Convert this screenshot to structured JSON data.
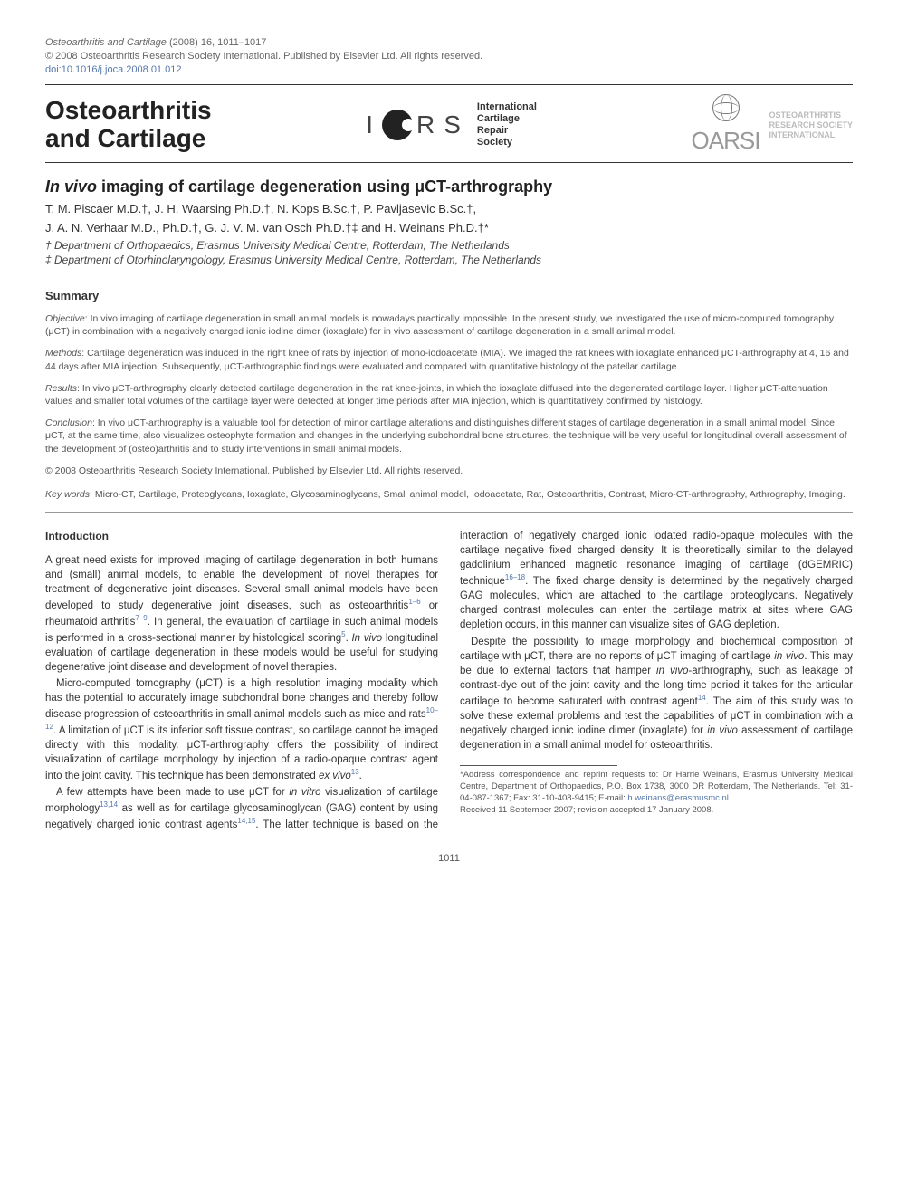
{
  "citation": {
    "journal": "Osteoarthritis and Cartilage",
    "year_vol": "(2008) 16, 1011–1017",
    "copyright": "© 2008 Osteoarthritis Research Society International. Published by Elsevier Ltd. All rights reserved.",
    "doi": "doi:10.1016/j.joca.2008.01.012"
  },
  "banner": {
    "journal_l1": "Osteoarthritis",
    "journal_l2": "and Cartilage",
    "icrs_i": "I",
    "icrs_r": "R",
    "icrs_s": "S",
    "icrs_l1": "International",
    "icrs_l2": "Cartilage",
    "icrs_l3": "Repair",
    "icrs_l4": "Society",
    "oarsi_mark": "OARSI",
    "oarsi_l1": "OSTEOARTHRITIS",
    "oarsi_l2": "RESEARCH SOCIETY",
    "oarsi_l3": "INTERNATIONAL"
  },
  "article": {
    "title_pre": "In vivo",
    "title_post": " imaging of cartilage degeneration using μCT-arthrography",
    "authors_l1": "T. M. Piscaer M.D.†, J. H. Waarsing Ph.D.†, N. Kops B.Sc.†, P. Pavljasevic B.Sc.†,",
    "authors_l2": "J. A. N. Verhaar M.D., Ph.D.†, G. J. V. M. van Osch Ph.D.†‡ and H. Weinans Ph.D.†*",
    "affil1": "† Department of Orthopaedics, Erasmus University Medical Centre, Rotterdam, The Netherlands",
    "affil2": "‡ Department of Otorhinolaryngology, Erasmus University Medical Centre, Rotterdam, The Netherlands"
  },
  "summary": {
    "heading": "Summary",
    "objective_lbl": "Objective",
    "objective_txt": ": In vivo imaging of cartilage degeneration in small animal models is nowadays practically impossible. In the present study, we investigated the use of micro-computed tomography (μCT) in combination with a negatively charged ionic iodine dimer (ioxaglate) for in vivo assessment of cartilage degeneration in a small animal model.",
    "methods_lbl": "Methods",
    "methods_txt": ": Cartilage degeneration was induced in the right knee of rats by injection of mono-iodoacetate (MIA). We imaged the rat knees with ioxaglate enhanced μCT-arthrography at 4, 16 and 44 days after MIA injection. Subsequently, μCT-arthrographic findings were evaluated and compared with quantitative histology of the patellar cartilage.",
    "results_lbl": "Results",
    "results_txt": ": In vivo μCT-arthrography clearly detected cartilage degeneration in the rat knee-joints, in which the ioxaglate diffused into the degenerated cartilage layer. Higher μCT-attenuation values and smaller total volumes of the cartilage layer were detected at longer time periods after MIA injection, which is quantitatively confirmed by histology.",
    "conclusion_lbl": "Conclusion",
    "conclusion_txt": ": In vivo μCT-arthrography is a valuable tool for detection of minor cartilage alterations and distinguishes different stages of cartilage degeneration in a small animal model. Since μCT, at the same time, also visualizes osteophyte formation and changes in the underlying subchondral bone structures, the technique will be very useful for longitudinal overall assessment of the development of (osteo)arthritis and to study interventions in small animal models.",
    "copyright": "© 2008 Osteoarthritis Research Society International. Published by Elsevier Ltd. All rights reserved.",
    "keywords_lbl": "Key words",
    "keywords_txt": ": Micro-CT, Cartilage, Proteoglycans, Ioxaglate, Glycosaminoglycans, Small animal model, Iodoacetate, Rat, Osteoarthritis, Contrast, Micro-CT-arthrography, Arthrography, Imaging."
  },
  "body": {
    "intro_head": "Introduction",
    "p1a": "A great need exists for improved imaging of cartilage degeneration in both humans and (small) animal models, to enable the development of novel therapies for treatment of degenerative joint diseases. Several small animal models have been developed to study degenerative joint diseases, such as osteoarthritis",
    "p1_ref1": "1–6",
    "p1b": " or rheumatoid arthritis",
    "p1_ref2": "7–9",
    "p1c": ". In general, the evaluation of cartilage in such animal models is performed in a cross-sectional manner by histological scoring",
    "p1_ref3": "5",
    "p1d": ". ",
    "p1_ital": "In vivo",
    "p1e": " longitudinal evaluation of cartilage degeneration in these models would be useful for studying degenerative joint disease and development of novel therapies.",
    "p2a": "Micro-computed tomography (μCT) is a high resolution imaging modality which has the potential to accurately image subchondral bone changes and thereby follow disease progression of osteoarthritis in small animal models such as mice and rats",
    "p2_ref1": "10–12",
    "p2b": ". A limitation of μCT is its inferior soft tissue contrast, so cartilage cannot be imaged directly with this modality. μCT-arthrography offers the possibility of indirect visualization of cartilage morphology by injection of a radio-opaque contrast agent into the joint cavity. This technique has been demonstrated ",
    "p2_ital": "ex vivo",
    "p2_ref2": "13",
    "p2c": ".",
    "p3a": "A few attempts have been made to use μCT for ",
    "p3_ital1": "in vitro",
    "p3b": " visualization of cartilage morphology",
    "p3_ref1": "13,14",
    "p3c": " as well as for cartilage glycosaminoglycan (GAG) content by using negatively charged ionic contrast agents",
    "p3_ref2": "14,15",
    "p3d": ". The latter technique is based on the interaction of negatively charged ionic iodated radio-opaque molecules with the cartilage negative fixed charged density. It is theoretically similar to the delayed gadolinium enhanced magnetic resonance imaging of cartilage (dGEMRIC) technique",
    "p3_ref3": "16–18",
    "p3e": ". The fixed charge density is determined by the negatively charged GAG molecules, which are attached to the cartilage proteoglycans. Negatively charged contrast molecules can enter the cartilage matrix at sites where GAG depletion occurs, in this manner can visualize sites of GAG depletion.",
    "p4a": "Despite the possibility to image morphology and biochemical composition of cartilage with μCT, there are no reports of μCT imaging of cartilage ",
    "p4_ital1": "in vivo",
    "p4b": ". This may be due to external factors that hamper ",
    "p4_ital2": "in vivo",
    "p4c": "-arthrography, such as leakage of contrast-dye out of the joint cavity and the long time period it takes for the articular cartilage to become saturated with contrast agent",
    "p4_ref1": "14",
    "p4d": ". The aim of this study was to solve these external problems and test the capabilities of μCT in combination with a negatively charged ionic iodine dimer (ioxaglate) for ",
    "p4_ital3": "in vivo",
    "p4e": " assessment of cartilage degeneration in a small animal model for osteoarthritis."
  },
  "footnote": {
    "corr": "*Address correspondence and reprint requests to: Dr Harrie Weinans, Erasmus University Medical Centre, Department of Orthopaedics, P.O. Box 1738, 3000 DR Rotterdam, The Netherlands. Tel: 31-04-087-1367; Fax: 31-10-408-9415; E-mail: ",
    "email": "h.weinans@erasmusmc.nl",
    "recv": "Received 11 September 2007; revision accepted 17 January 2008."
  },
  "page_number": "1011",
  "colors": {
    "text": "#3a3a3a",
    "muted": "#666666",
    "link": "#5577aa",
    "rule": "#333333",
    "logo_gray": "#999999"
  }
}
